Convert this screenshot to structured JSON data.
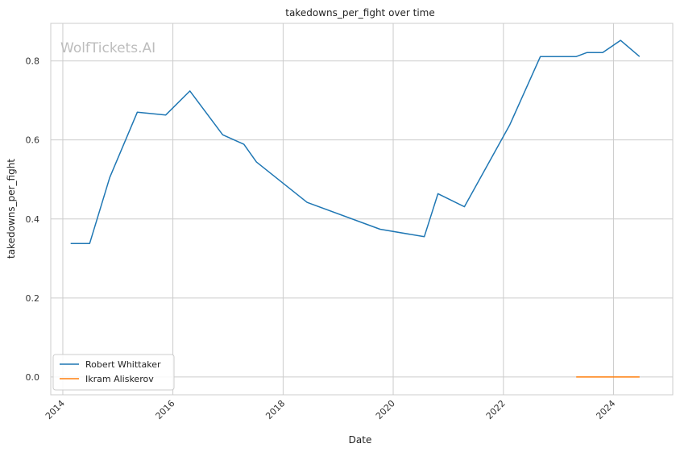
{
  "watermark": "WolfTickets.AI",
  "chart_data": {
    "type": "line",
    "title": "takedowns_per_fight over time",
    "xlabel": "Date",
    "ylabel": "takedowns_per_fight",
    "x_ticks": [
      "2014",
      "2016",
      "2018",
      "2020",
      "2022",
      "2024"
    ],
    "y_ticks": [
      "0.0",
      "0.2",
      "0.4",
      "0.6",
      "0.8"
    ],
    "xlim": [
      "2013-10-13",
      "2025-01-28"
    ],
    "ylim": [
      -0.045,
      0.895
    ],
    "grid": true,
    "legend_position": "lower-left",
    "series": [
      {
        "name": "Robert Whittaker",
        "color": "#1f77b4",
        "points": [
          [
            "2014-02-22",
            0.338
          ],
          [
            "2014-06-28",
            0.338
          ],
          [
            "2014-11-08",
            0.505
          ],
          [
            "2015-05-10",
            0.67
          ],
          [
            "2015-11-14",
            0.663
          ],
          [
            "2016-04-23",
            0.724
          ],
          [
            "2016-11-26",
            0.613
          ],
          [
            "2017-04-16",
            0.589
          ],
          [
            "2017-07-08",
            0.544
          ],
          [
            "2018-06-09",
            0.442
          ],
          [
            "2019-10-06",
            0.374
          ],
          [
            "2020-07-25",
            0.355
          ],
          [
            "2020-10-24",
            0.464
          ],
          [
            "2021-04-17",
            0.431
          ],
          [
            "2022-02-12",
            0.638
          ],
          [
            "2022-09-03",
            0.811
          ],
          [
            "2023-04-29",
            0.811
          ],
          [
            "2023-07-08",
            0.821
          ],
          [
            "2023-10-21",
            0.821
          ],
          [
            "2024-02-17",
            0.852
          ],
          [
            "2024-06-22",
            0.811
          ]
        ]
      },
      {
        "name": "Ikram Aliskerov",
        "color": "#ff7f0e",
        "points": [
          [
            "2023-04-29",
            0.0
          ],
          [
            "2024-06-22",
            0.0
          ]
        ]
      }
    ]
  }
}
